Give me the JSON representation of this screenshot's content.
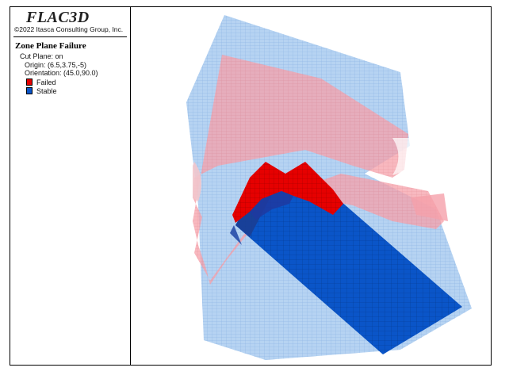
{
  "app_title": "FLAC3D",
  "copyright": "©2022 Itasca Consulting Group, Inc.",
  "plot_title": "Zone Plane Failure",
  "cut_plane": "Cut Plane: on",
  "origin": "Origin: (6.5,3.75,-5)",
  "orientation": "Orientation: (45.0,90.0)",
  "legend": [
    {
      "label": "Failed",
      "color": "#e60000"
    },
    {
      "label": "Stable",
      "color": "#0a55c8"
    }
  ],
  "colors": {
    "ghost_blue": "#a9cbf0",
    "ghost_red": "#f5a0aa",
    "failed_red": "#e60000",
    "stable_blue": "#0a55c8",
    "mesh_line": "#6f9fd8"
  }
}
